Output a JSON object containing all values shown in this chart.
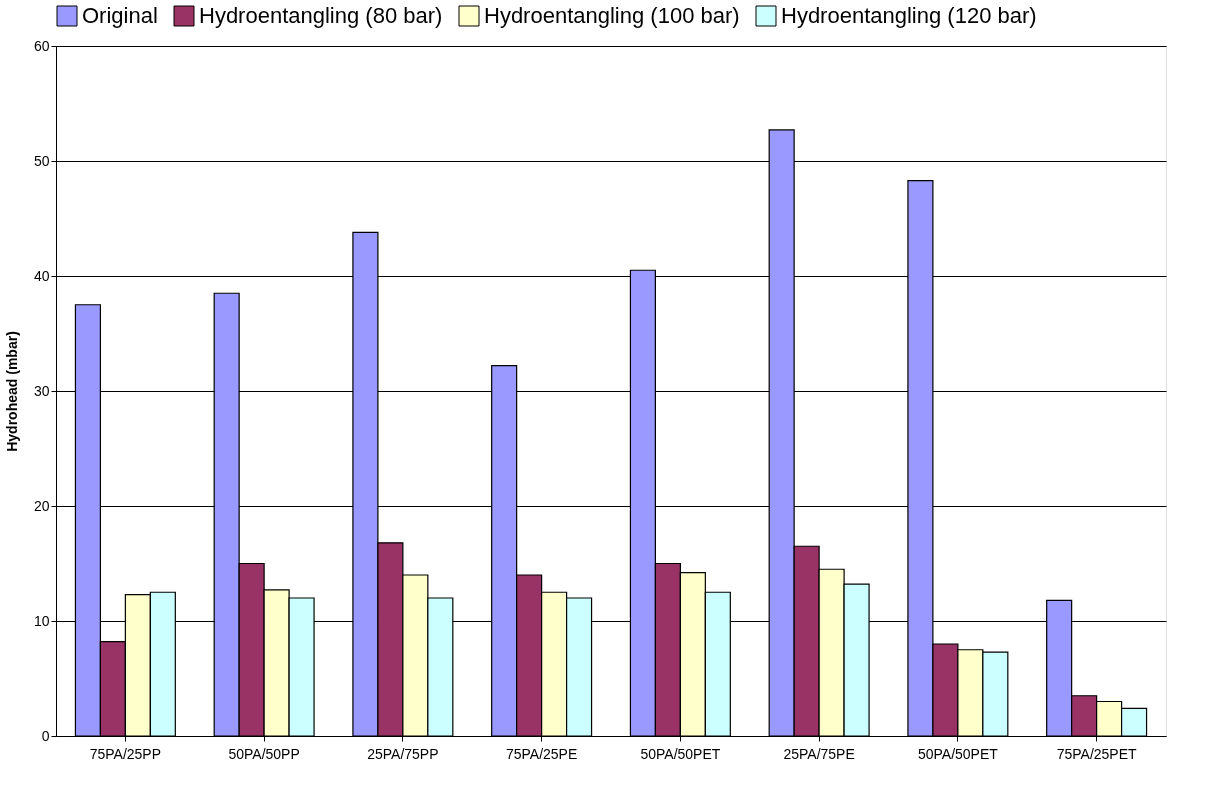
{
  "chart_data": {
    "type": "bar",
    "ylabel": "Hydrohead (mbar)",
    "categories": [
      "75PA/25PP",
      "50PA/50PP",
      "25PA/75PP",
      "75PA/25PE",
      "50PA/50PET",
      "25PA/75PE",
      "50PA/50PET",
      "75PA/25PET"
    ],
    "series": [
      {
        "name": "Original",
        "color": "#9999ff",
        "values": [
          37.5,
          38.5,
          43.8,
          32.2,
          40.5,
          52.7,
          48.3,
          11.8
        ]
      },
      {
        "name": "Hydroentangling (80 bar)",
        "color": "#993366",
        "values": [
          8.2,
          15.0,
          16.8,
          14.0,
          15.0,
          16.5,
          8.0,
          3.5
        ]
      },
      {
        "name": "Hydroentangling (100 bar)",
        "color": "#ffffcc",
        "values": [
          12.3,
          12.7,
          14.0,
          12.5,
          14.2,
          14.5,
          7.5,
          3.0
        ]
      },
      {
        "name": "Hydroentangling (120 bar)",
        "color": "#ccffff",
        "values": [
          12.5,
          12.0,
          12.0,
          12.0,
          12.5,
          13.2,
          7.3,
          2.4
        ]
      }
    ],
    "ylim": [
      0,
      60
    ],
    "yticks": [
      0,
      10,
      20,
      30,
      40,
      50,
      60
    ],
    "grid": "y",
    "legend": "top"
  }
}
